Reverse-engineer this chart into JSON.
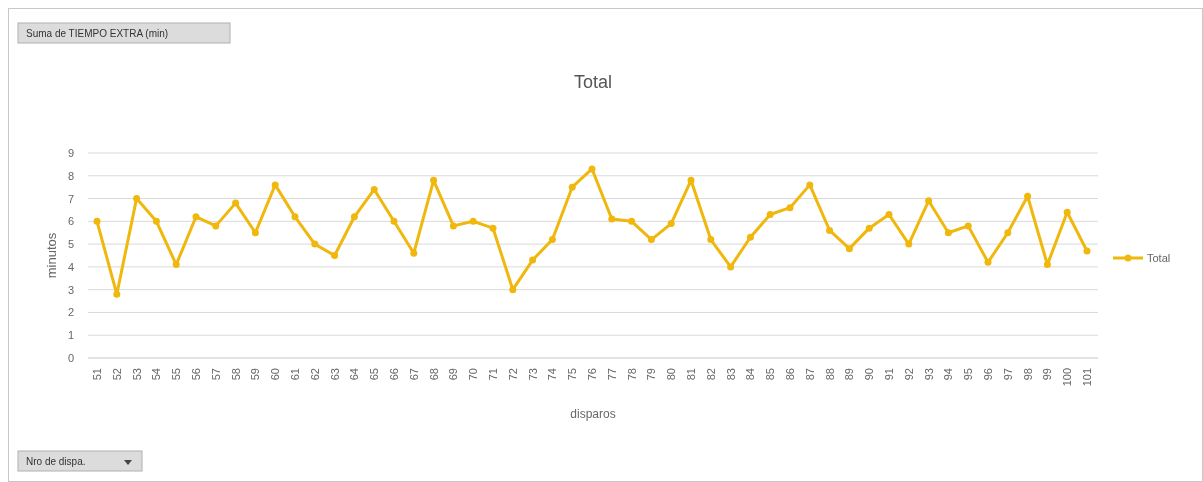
{
  "chart_data": {
    "type": "line",
    "title": "Total",
    "xlabel": "disparos",
    "ylabel": "minutos",
    "annotations": [
      "Suma de TIEMPO EXTRA (min)",
      "Nro de dispa."
    ],
    "categories": [
      "51",
      "52",
      "53",
      "54",
      "55",
      "56",
      "57",
      "58",
      "59",
      "60",
      "61",
      "62",
      "63",
      "64",
      "65",
      "66",
      "67",
      "68",
      "69",
      "70",
      "71",
      "72",
      "73",
      "74",
      "75",
      "76",
      "77",
      "78",
      "79",
      "80",
      "81",
      "82",
      "83",
      "84",
      "85",
      "86",
      "87",
      "88",
      "89",
      "90",
      "91",
      "92",
      "93",
      "94",
      "95",
      "96",
      "97",
      "98",
      "99",
      "100",
      "101"
    ],
    "series": [
      {
        "name": "Total",
        "color": "#f0b70c",
        "values": [
          6.0,
          2.8,
          7.0,
          6.0,
          4.1,
          6.2,
          5.8,
          6.8,
          5.5,
          7.6,
          6.2,
          5.0,
          4.5,
          6.2,
          7.4,
          6.0,
          4.6,
          7.8,
          5.8,
          6.0,
          5.7,
          3.0,
          4.3,
          5.2,
          7.5,
          8.3,
          6.1,
          6.0,
          5.2,
          5.9,
          7.8,
          5.2,
          4.0,
          5.3,
          6.3,
          6.6,
          7.6,
          5.6,
          4.8,
          5.7,
          6.3,
          5.0,
          6.9,
          5.5,
          5.8,
          4.2,
          5.5,
          7.1,
          4.1,
          6.4,
          4.7
        ]
      }
    ],
    "ylim": [
      0,
      9
    ],
    "yticks": [
      0,
      1,
      2,
      3,
      4,
      5,
      6,
      7,
      8,
      9
    ],
    "grid": "y",
    "legend": "right",
    "marker": "circle",
    "line_style": "solid"
  }
}
